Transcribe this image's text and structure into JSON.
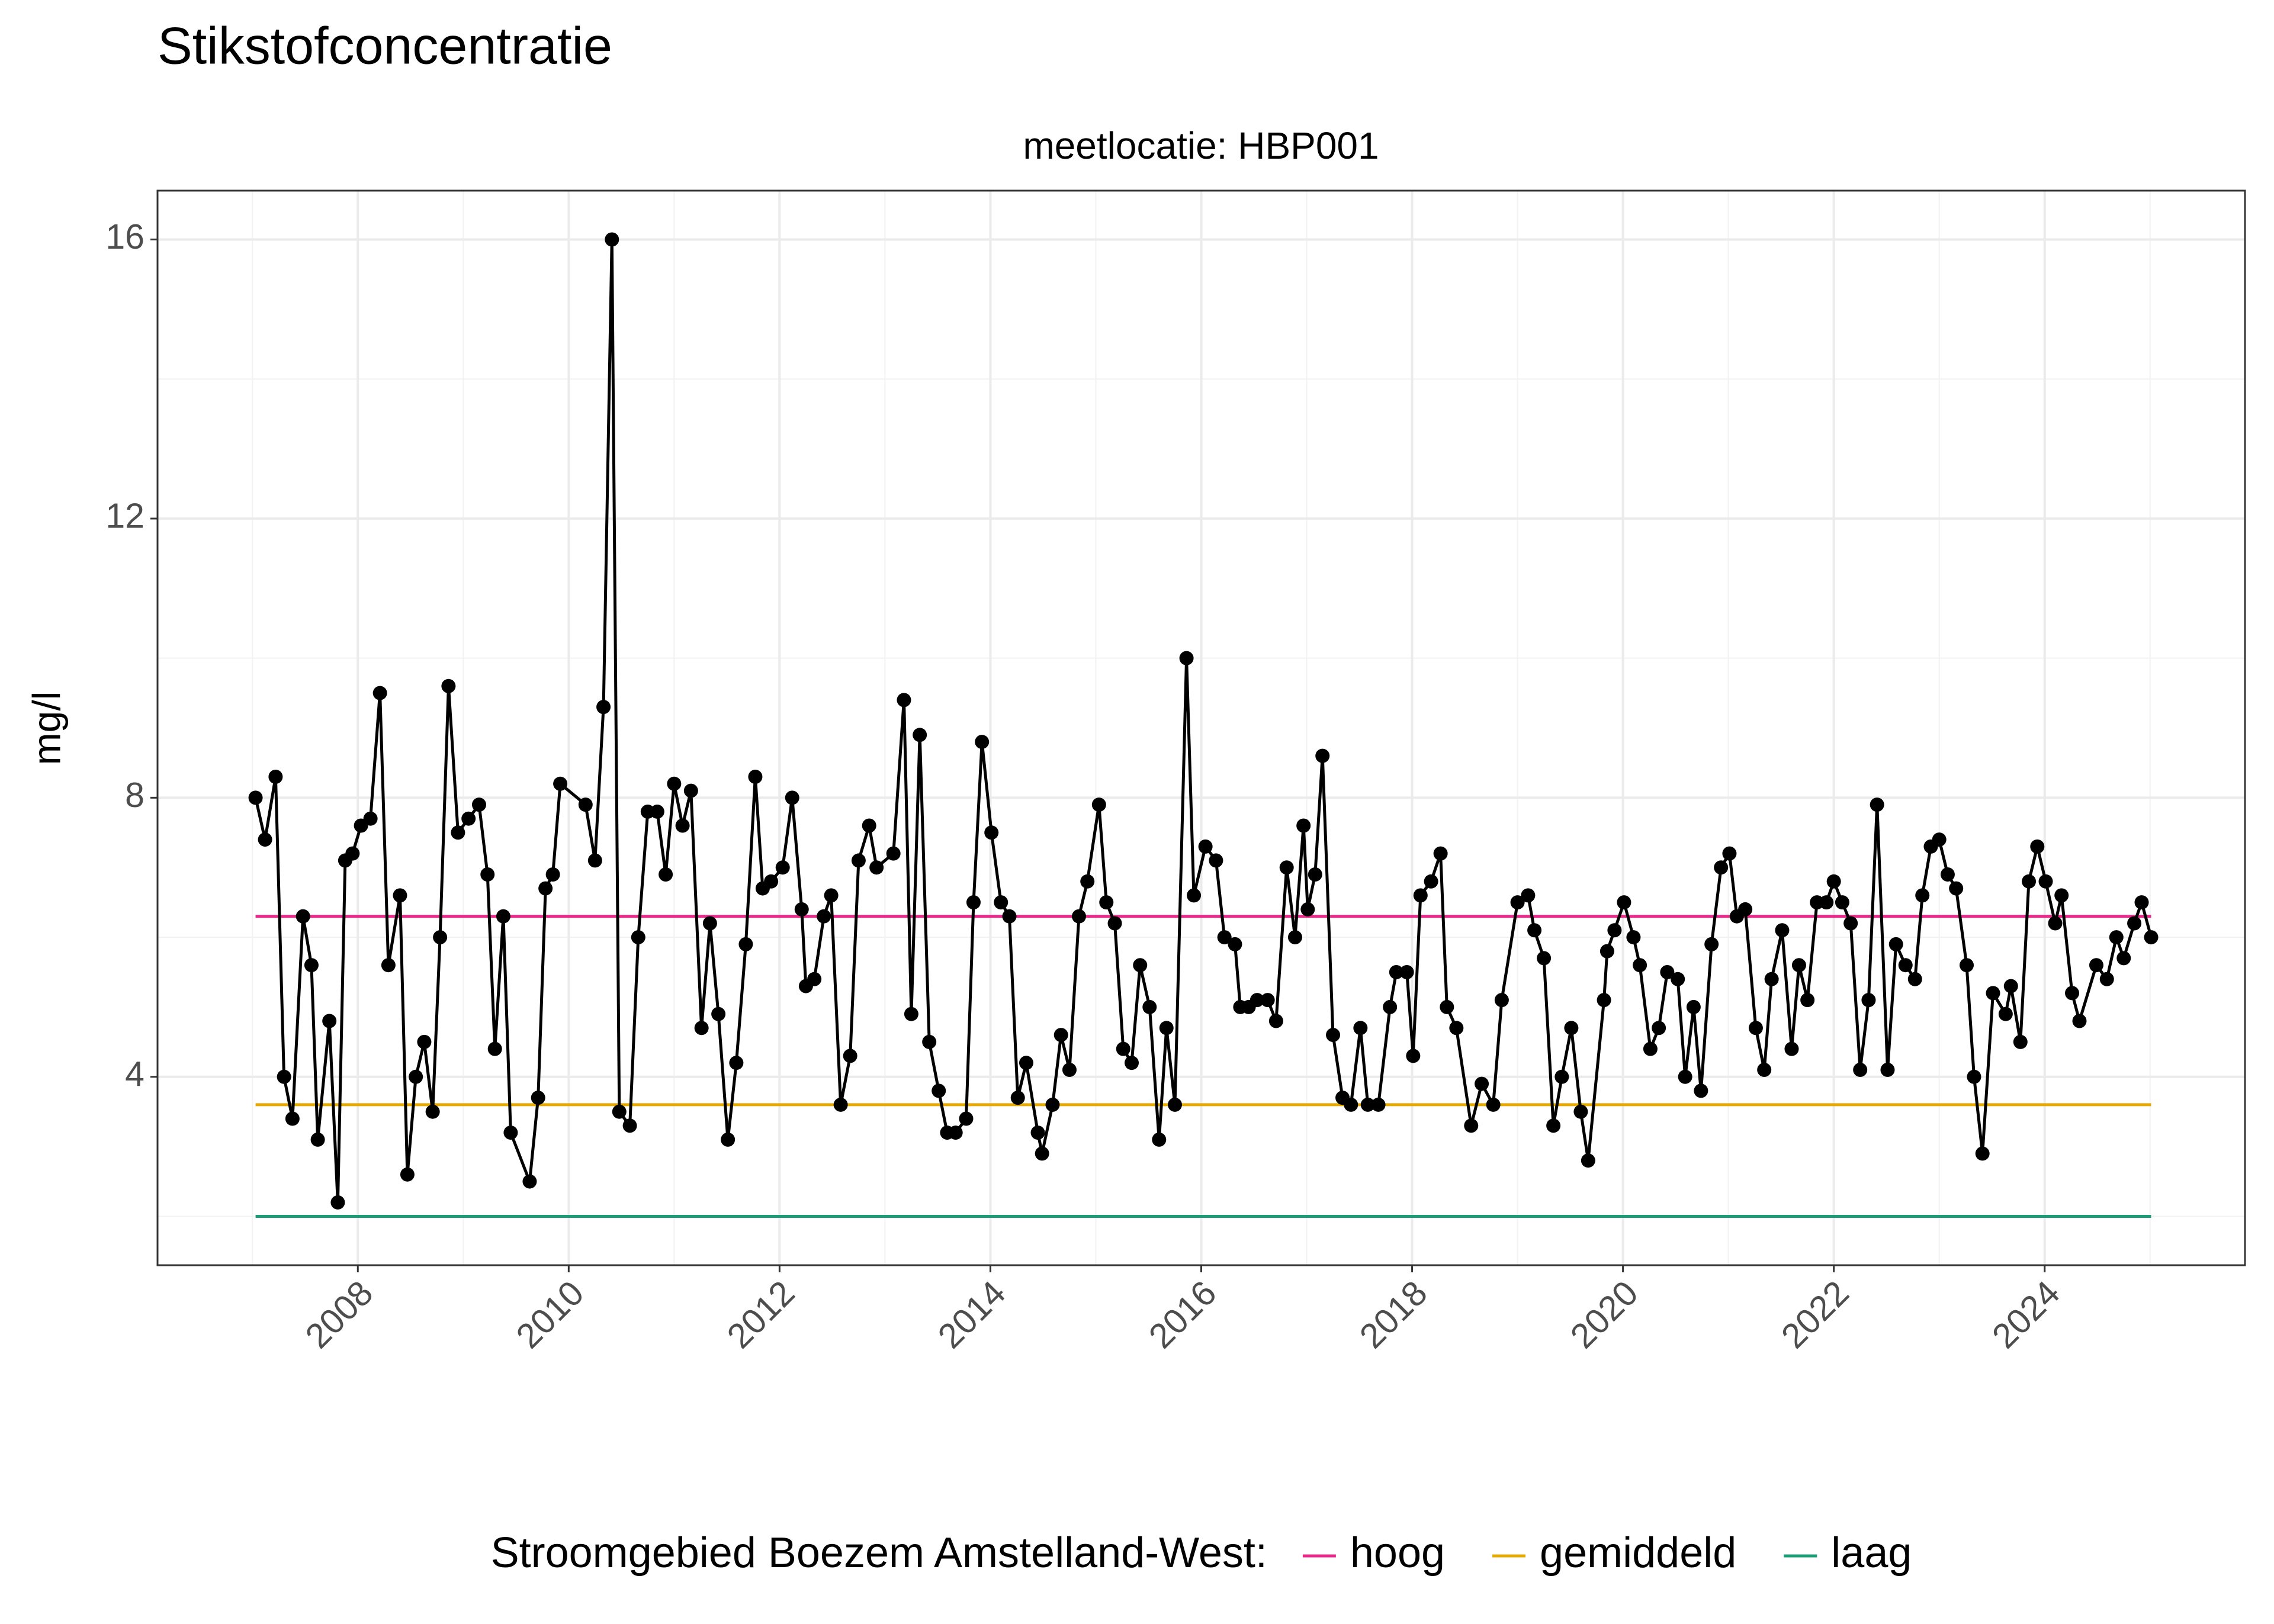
{
  "chart_data": {
    "type": "line",
    "title": "Stikstofconcentratie",
    "subtitle": "meetlocatie: HBP001",
    "y_label": "mg/l",
    "legend_title": "Stroomgebied Boezem Amstelland-West:",
    "legend_position": "bottom",
    "grid": true,
    "color": "#000000",
    "markers": true,
    "x": [
      2007.03,
      2007.12,
      2007.22,
      2007.3,
      2007.38,
      2007.48,
      2007.56,
      2007.62,
      2007.73,
      2007.81,
      2007.88,
      2007.95,
      2008.03,
      2008.12,
      2008.21,
      2008.29,
      2008.4,
      2008.47,
      2008.55,
      2008.63,
      2008.71,
      2008.78,
      2008.86,
      2008.95,
      2009.05,
      2009.15,
      2009.23,
      2009.3,
      2009.38,
      2009.45,
      2009.63,
      2009.71,
      2009.78,
      2009.85,
      2009.92,
      2010.16,
      2010.25,
      2010.33,
      2010.41,
      2010.48,
      2010.58,
      2010.66,
      2010.75,
      2010.84,
      2010.92,
      2011.0,
      2011.08,
      2011.16,
      2011.26,
      2011.34,
      2011.42,
      2011.51,
      2011.59,
      2011.68,
      2011.77,
      2011.84,
      2011.92,
      2012.03,
      2012.12,
      2012.21,
      2012.25,
      2012.33,
      2012.42,
      2012.49,
      2012.58,
      2012.67,
      2012.75,
      2012.85,
      2012.92,
      2013.08,
      2013.18,
      2013.25,
      2013.33,
      2013.42,
      2013.51,
      2013.59,
      2013.67,
      2013.77,
      2013.84,
      2013.92,
      2014.01,
      2014.1,
      2014.18,
      2014.26,
      2014.34,
      2014.45,
      2014.49,
      2014.59,
      2014.67,
      2014.75,
      2014.84,
      2014.92,
      2015.03,
      2015.1,
      2015.18,
      2015.26,
      2015.34,
      2015.42,
      2015.51,
      2015.6,
      2015.67,
      2015.75,
      2015.86,
      2015.93,
      2016.04,
      2016.14,
      2016.22,
      2016.32,
      2016.37,
      2016.45,
      2016.53,
      2016.63,
      2016.71,
      2016.81,
      2016.89,
      2016.97,
      2017.01,
      2017.08,
      2017.15,
      2017.25,
      2017.34,
      2017.42,
      2017.51,
      2017.58,
      2017.68,
      2017.79,
      2017.85,
      2017.95,
      2018.01,
      2018.08,
      2018.18,
      2018.27,
      2018.33,
      2018.42,
      2018.56,
      2018.66,
      2018.77,
      2018.85,
      2019.0,
      2019.1,
      2019.16,
      2019.25,
      2019.34,
      2019.42,
      2019.51,
      2019.6,
      2019.67,
      2019.82,
      2019.85,
      2019.92,
      2020.01,
      2020.1,
      2020.16,
      2020.26,
      2020.34,
      2020.42,
      2020.52,
      2020.59,
      2020.67,
      2020.74,
      2020.84,
      2020.93,
      2021.01,
      2021.08,
      2021.16,
      2021.26,
      2021.34,
      2021.41,
      2021.51,
      2021.6,
      2021.67,
      2021.75,
      2021.84,
      2021.93,
      2022.0,
      2022.08,
      2022.16,
      2022.25,
      2022.33,
      2022.41,
      2022.51,
      2022.59,
      2022.68,
      2022.77,
      2022.84,
      2022.92,
      2023.0,
      2023.08,
      2023.16,
      2023.26,
      2023.33,
      2023.41,
      2023.51,
      2023.63,
      2023.68,
      2023.77,
      2023.85,
      2023.93,
      2024.01,
      2024.1,
      2024.16,
      2024.26,
      2024.33,
      2024.49,
      2024.59,
      2024.68,
      2024.75,
      2024.85,
      2024.92,
      2025.01
    ],
    "values": [
      8.0,
      7.4,
      8.3,
      4.0,
      3.4,
      6.3,
      5.6,
      3.1,
      4.8,
      2.2,
      7.1,
      7.2,
      7.6,
      7.7,
      9.5,
      5.6,
      6.6,
      2.6,
      4.0,
      4.5,
      3.5,
      6.0,
      9.6,
      7.5,
      7.7,
      7.9,
      6.9,
      4.4,
      6.3,
      3.2,
      2.5,
      3.7,
      6.7,
      6.9,
      8.2,
      7.9,
      7.1,
      9.3,
      16.0,
      3.5,
      3.3,
      6.0,
      7.8,
      7.8,
      6.9,
      8.2,
      7.6,
      8.1,
      4.7,
      6.2,
      4.9,
      3.1,
      4.2,
      5.9,
      8.3,
      6.7,
      6.8,
      7.0,
      8.0,
      6.4,
      5.3,
      5.4,
      6.3,
      6.6,
      3.6,
      4.3,
      7.1,
      7.6,
      7.0,
      7.2,
      9.4,
      4.9,
      8.9,
      4.5,
      3.8,
      3.2,
      3.2,
      3.4,
      6.5,
      8.8,
      7.5,
      6.5,
      6.3,
      3.7,
      4.2,
      3.2,
      2.9,
      3.6,
      4.6,
      4.1,
      6.3,
      6.8,
      7.9,
      6.5,
      6.2,
      4.4,
      4.2,
      5.6,
      5.0,
      3.1,
      4.7,
      3.6,
      10.0,
      6.6,
      7.3,
      7.1,
      6.0,
      5.9,
      5.0,
      5.0,
      5.1,
      5.1,
      4.8,
      7.0,
      6.0,
      7.6,
      6.4,
      6.9,
      8.6,
      4.6,
      3.7,
      3.6,
      4.7,
      3.6,
      3.6,
      5.0,
      5.5,
      5.5,
      4.3,
      6.6,
      6.8,
      7.2,
      5.0,
      4.7,
      3.3,
      3.9,
      3.6,
      5.1,
      6.5,
      6.6,
      6.1,
      5.7,
      3.3,
      4.0,
      4.7,
      3.5,
      2.8,
      5.1,
      5.8,
      6.1,
      6.5,
      6.0,
      5.6,
      4.4,
      4.7,
      5.5,
      5.4,
      4.0,
      5.0,
      3.8,
      5.9,
      7.0,
      7.2,
      6.3,
      6.4,
      4.7,
      4.1,
      5.4,
      6.1,
      4.4,
      5.6,
      5.1,
      6.5,
      6.5,
      6.8,
      6.5,
      6.2,
      4.1,
      5.1,
      7.9,
      4.1,
      5.9,
      5.6,
      5.4,
      6.6,
      7.3,
      7.4,
      6.9,
      6.7,
      5.6,
      4.0,
      2.9,
      5.2,
      4.9,
      5.3,
      4.5,
      6.8,
      7.3,
      6.8,
      6.2,
      6.6,
      5.2,
      4.8,
      5.6,
      5.4,
      6.0,
      5.7,
      6.2,
      6.5,
      6.0
    ],
    "reference_lines": [
      {
        "name": "hoog",
        "color": "#e7298a",
        "value": 6.3
      },
      {
        "name": "gemiddeld",
        "color": "#e6ab02",
        "value": 3.6
      },
      {
        "name": "laag",
        "color": "#1b9e77",
        "value": 2.0
      }
    ],
    "xlim": [
      2006.1,
      2025.9
    ],
    "xticks": [
      2008,
      2010,
      2012,
      2014,
      2016,
      2018,
      2020,
      2022,
      2024
    ],
    "x_minor_ticks": [
      2007,
      2009,
      2011,
      2013,
      2015,
      2017,
      2019,
      2021,
      2023,
      2025
    ],
    "ylim": [
      1.3,
      16.7
    ],
    "yticks": [
      4,
      8,
      12,
      16
    ],
    "y_minor_ticks": [
      2,
      6,
      10,
      14
    ]
  }
}
